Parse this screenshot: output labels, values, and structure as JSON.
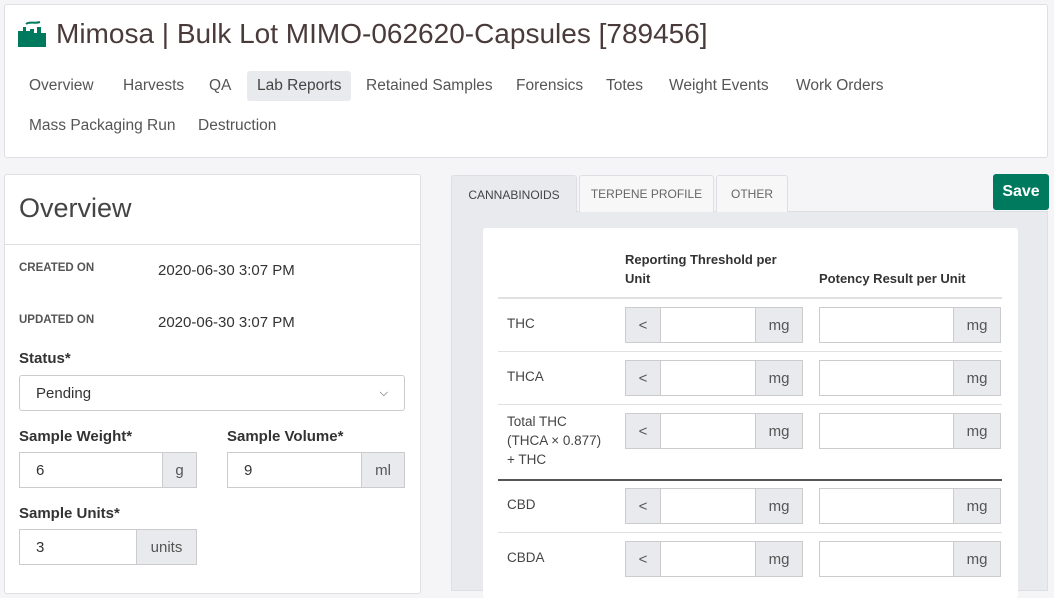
{
  "header": {
    "title": "Mimosa | Bulk Lot MIMO-062620-Capsules [789456]",
    "icon": "factory-icon",
    "brand_color": "#007a5e",
    "nav": [
      "Overview",
      "Harvests",
      "QA",
      "Lab Reports",
      "Retained Samples",
      "Forensics",
      "Totes",
      "Weight Events",
      "Work Orders",
      "Mass Packaging Run",
      "Destruction"
    ],
    "active_nav": "Lab Reports"
  },
  "overview": {
    "title": "Overview",
    "created_label": "CREATED ON",
    "created_value": "2020-06-30 3:07 PM",
    "updated_label": "UPDATED ON",
    "updated_value": "2020-06-30 3:07 PM",
    "status_label": "Status*",
    "status_value": "Pending",
    "weight_label": "Sample Weight*",
    "weight_value": "6",
    "weight_unit": "g",
    "volume_label": "Sample Volume*",
    "volume_value": "9",
    "volume_unit": "ml",
    "units_label": "Sample Units*",
    "units_value": "3",
    "units_unit": "units"
  },
  "lab": {
    "tabs": [
      "CANNABINOIDS",
      "TERPENE PROFILE",
      "OTHER"
    ],
    "active_tab": "CANNABINOIDS",
    "save_label": "Save",
    "col_threshold": "Reporting Threshold per Unit",
    "col_potency": "Potency Result per Unit",
    "prefix": "<",
    "unit": "mg",
    "rows": [
      {
        "name": "THC"
      },
      {
        "name": "THCA"
      },
      {
        "name": "Total THC",
        "sub1": "(THCA × 0.877)",
        "sub2": "+ THC"
      },
      {
        "name": "CBD"
      },
      {
        "name": "CBDA"
      }
    ]
  }
}
